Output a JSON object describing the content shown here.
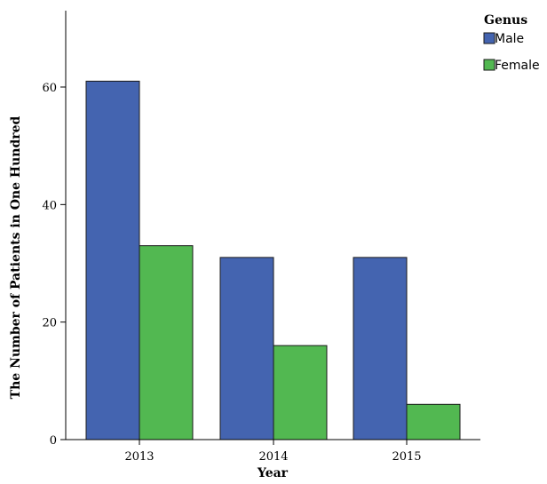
{
  "chart_data": {
    "type": "bar",
    "categories": [
      "2013",
      "2014",
      "2015"
    ],
    "series": [
      {
        "name": "Male",
        "values": [
          61,
          31,
          31
        ],
        "color": "#4464b0"
      },
      {
        "name": "Female",
        "values": [
          33,
          16,
          6
        ],
        "color": "#52b851"
      }
    ],
    "xlabel": "Year",
    "ylabel": "The Number of Patients in One Hundred",
    "ylim": [
      0,
      73
    ],
    "yticks": [
      "0",
      "20",
      "40",
      "60"
    ],
    "legend_title": "Genus",
    "legend_position": "top-right",
    "grid": false
  }
}
